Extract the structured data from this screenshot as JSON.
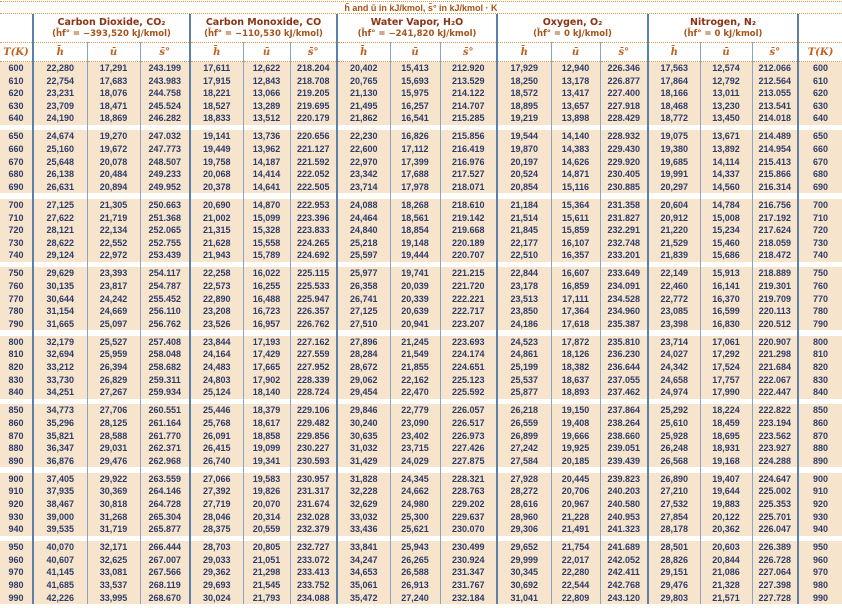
{
  "title": "h̄ and ū in kJ/kmol, s̄° in kJ/kmol · K",
  "table": {
    "t_header": "T(K)",
    "symbols": {
      "h": "h̄",
      "u": "ū",
      "s": "s̄°"
    },
    "gases": [
      {
        "name": "Carbon Dioxide, CO₂",
        "formation": "(h̄f° = −393,520 kJ/kmol)"
      },
      {
        "name": "Carbon Monoxide, CO",
        "formation": "(h̄f° = −110,530 kJ/kmol)"
      },
      {
        "name": "Water Vapor, H₂O",
        "formation": "(h̄f° = −241,820 kJ/kmol)"
      },
      {
        "name": "Oxygen, O₂",
        "formation": "(h̄f° = 0 kJ/kmol)"
      },
      {
        "name": "Nitrogen, N₂",
        "formation": "(h̄f° = 0 kJ/kmol)"
      }
    ],
    "column_keys": [
      "T",
      "co2_h",
      "co2_u",
      "co2_s",
      "co_h",
      "co_u",
      "co_s",
      "h2o_h",
      "h2o_u",
      "h2o_s",
      "o2_h",
      "o2_u",
      "o2_s",
      "n2_h",
      "n2_u",
      "n2_s",
      "T"
    ],
    "groups": [
      {
        "rows": [
          [
            "600",
            "22,280",
            "17,291",
            "243.199",
            "17,611",
            "12,622",
            "218.204",
            "20,402",
            "15,413",
            "212.920",
            "17,929",
            "12,940",
            "226.346",
            "17,563",
            "12,574",
            "212.066",
            "600"
          ],
          [
            "610",
            "22,754",
            "17,683",
            "243.983",
            "17,915",
            "12,843",
            "218.708",
            "20,765",
            "15,693",
            "213.529",
            "18,250",
            "13,178",
            "226.877",
            "17,864",
            "12,792",
            "212.564",
            "610"
          ],
          [
            "620",
            "23,231",
            "18,076",
            "244.758",
            "18,221",
            "13,066",
            "219.205",
            "21,130",
            "15,975",
            "214.122",
            "18,572",
            "13,417",
            "227.400",
            "18,166",
            "13,011",
            "213.055",
            "620"
          ],
          [
            "630",
            "23,709",
            "18,471",
            "245.524",
            "18,527",
            "13,289",
            "219.695",
            "21,495",
            "16,257",
            "214.707",
            "18,895",
            "13,657",
            "227.918",
            "18,468",
            "13,230",
            "213.541",
            "630"
          ],
          [
            "640",
            "24,190",
            "18,869",
            "246.282",
            "18,833",
            "13,512",
            "220.179",
            "21,862",
            "16,541",
            "215.285",
            "19,219",
            "13,898",
            "228.429",
            "18,772",
            "13,450",
            "214.018",
            "640"
          ]
        ]
      },
      {
        "rows": [
          [
            "650",
            "24,674",
            "19,270",
            "247.032",
            "19,141",
            "13,736",
            "220.656",
            "22,230",
            "16,826",
            "215.856",
            "19,544",
            "14,140",
            "228.932",
            "19,075",
            "13,671",
            "214.489",
            "650"
          ],
          [
            "660",
            "25,160",
            "19,672",
            "247.773",
            "19,449",
            "13,962",
            "221.127",
            "22,600",
            "17,112",
            "216.419",
            "19,870",
            "14,383",
            "229.430",
            "19,380",
            "13,892",
            "214.954",
            "660"
          ],
          [
            "670",
            "25,648",
            "20,078",
            "248.507",
            "19,758",
            "14,187",
            "221.592",
            "22,970",
            "17,399",
            "216.976",
            "20,197",
            "14,626",
            "229.920",
            "19,685",
            "14,114",
            "215.413",
            "670"
          ],
          [
            "680",
            "26,138",
            "20,484",
            "249.233",
            "20,068",
            "14,414",
            "222.052",
            "23,342",
            "17,688",
            "217.527",
            "20,524",
            "14,871",
            "230.405",
            "19,991",
            "14,337",
            "215.866",
            "680"
          ],
          [
            "690",
            "26,631",
            "20,894",
            "249.952",
            "20,378",
            "14,641",
            "222.505",
            "23,714",
            "17,978",
            "218.071",
            "20,854",
            "15,116",
            "230.885",
            "20,297",
            "14,560",
            "216.314",
            "690"
          ]
        ]
      },
      {
        "rows": [
          [
            "700",
            "27,125",
            "21,305",
            "250.663",
            "20,690",
            "14,870",
            "222.953",
            "24,088",
            "18,268",
            "218.610",
            "21,184",
            "15,364",
            "231.358",
            "20,604",
            "14,784",
            "216.756",
            "700"
          ],
          [
            "710",
            "27,622",
            "21,719",
            "251.368",
            "21,002",
            "15,099",
            "223.396",
            "24,464",
            "18,561",
            "219.142",
            "21,514",
            "15,611",
            "231.827",
            "20,912",
            "15,008",
            "217.192",
            "710"
          ],
          [
            "720",
            "28,121",
            "22,134",
            "252.065",
            "21,315",
            "15,328",
            "223.833",
            "24,840",
            "18,854",
            "219.668",
            "21,845",
            "15,859",
            "232.291",
            "21,220",
            "15,234",
            "217.624",
            "720"
          ],
          [
            "730",
            "28,622",
            "22,552",
            "252.755",
            "21,628",
            "15,558",
            "224.265",
            "25,218",
            "19,148",
            "220.189",
            "22,177",
            "16,107",
            "232.748",
            "21,529",
            "15,460",
            "218.059",
            "730"
          ],
          [
            "740",
            "29,124",
            "22,972",
            "253.439",
            "21,943",
            "15,789",
            "224.692",
            "25,597",
            "19,444",
            "220.707",
            "22,510",
            "16,357",
            "233.201",
            "21,839",
            "15,686",
            "218.472",
            "740"
          ]
        ]
      },
      {
        "rows": [
          [
            "750",
            "29,629",
            "23,393",
            "254.117",
            "22,258",
            "16,022",
            "225.115",
            "25,977",
            "19,741",
            "221.215",
            "22,844",
            "16,607",
            "233.649",
            "22,149",
            "15,913",
            "218.889",
            "750"
          ],
          [
            "760",
            "30,135",
            "23,817",
            "254.787",
            "22,573",
            "16,255",
            "225.533",
            "26,358",
            "20,039",
            "221.720",
            "23,178",
            "16,859",
            "234.091",
            "22,460",
            "16,141",
            "219.301",
            "760"
          ],
          [
            "770",
            "30,644",
            "24,242",
            "255.452",
            "22,890",
            "16,488",
            "225.947",
            "26,741",
            "20,339",
            "222.221",
            "23,513",
            "17,111",
            "234.528",
            "22,772",
            "16,370",
            "219.709",
            "770"
          ],
          [
            "780",
            "31,154",
            "24,669",
            "256.110",
            "23,208",
            "16,723",
            "226.357",
            "27,125",
            "20,639",
            "222.717",
            "23,850",
            "17,364",
            "234.960",
            "23,085",
            "16,599",
            "220.113",
            "780"
          ],
          [
            "790",
            "31,665",
            "25,097",
            "256.762",
            "23,526",
            "16,957",
            "226.762",
            "27,510",
            "20,941",
            "223.207",
            "24,186",
            "17,618",
            "235.387",
            "23,398",
            "16,830",
            "220.512",
            "790"
          ]
        ]
      },
      {
        "rows": [
          [
            "800",
            "32,179",
            "25,527",
            "257.408",
            "23,844",
            "17,193",
            "227.162",
            "27,896",
            "21,245",
            "223.693",
            "24,523",
            "17,872",
            "235.810",
            "23,714",
            "17,061",
            "220.907",
            "800"
          ],
          [
            "810",
            "32,694",
            "25,959",
            "258.048",
            "24,164",
            "17,429",
            "227.559",
            "28,284",
            "21,549",
            "224.174",
            "24,861",
            "18,126",
            "236.230",
            "24,027",
            "17,292",
            "221.298",
            "810"
          ],
          [
            "820",
            "33,212",
            "26,394",
            "258.682",
            "24,483",
            "17,665",
            "227.952",
            "28,672",
            "21,855",
            "224.651",
            "25,199",
            "18,382",
            "236.644",
            "24,342",
            "17,524",
            "221.684",
            "820"
          ],
          [
            "830",
            "33,730",
            "26,829",
            "259.311",
            "24,803",
            "17,902",
            "228.339",
            "29,062",
            "22,162",
            "225.123",
            "25,537",
            "18,637",
            "237.055",
            "24,658",
            "17,757",
            "222.067",
            "830"
          ],
          [
            "840",
            "34,251",
            "27,267",
            "259.934",
            "25,124",
            "18,140",
            "228.724",
            "29,454",
            "22,470",
            "225.592",
            "25,877",
            "18,893",
            "237.462",
            "24,974",
            "17,990",
            "222.447",
            "840"
          ]
        ]
      },
      {
        "rows": [
          [
            "850",
            "34,773",
            "27,706",
            "260.551",
            "25,446",
            "18,379",
            "229.106",
            "29,846",
            "22,779",
            "226.057",
            "26,218",
            "19,150",
            "237.864",
            "25,292",
            "18,224",
            "222.822",
            "850"
          ],
          [
            "860",
            "35,296",
            "28,125",
            "261.164",
            "25,768",
            "18,617",
            "229.482",
            "30,240",
            "23,090",
            "226.517",
            "26,559",
            "19,408",
            "238.264",
            "25,610",
            "18,459",
            "223.194",
            "860"
          ],
          [
            "870",
            "35,821",
            "28,588",
            "261.770",
            "26,091",
            "18,858",
            "229.856",
            "30,635",
            "23,402",
            "226.973",
            "26,899",
            "19,666",
            "238.660",
            "25,928",
            "18,695",
            "223.562",
            "870"
          ],
          [
            "880",
            "36,347",
            "29,031",
            "262.371",
            "26,415",
            "19,099",
            "230.227",
            "31,032",
            "23,715",
            "227.426",
            "27,242",
            "19,925",
            "239.051",
            "26,248",
            "18,931",
            "223.927",
            "880"
          ],
          [
            "890",
            "36,876",
            "29,476",
            "262.968",
            "26,740",
            "19,341",
            "230.593",
            "31,429",
            "24,029",
            "227.875",
            "27,584",
            "20,185",
            "239.439",
            "26,568",
            "19,168",
            "224.288",
            "890"
          ]
        ]
      },
      {
        "rows": [
          [
            "900",
            "37,405",
            "29,922",
            "263.559",
            "27,066",
            "19,583",
            "230.957",
            "31,828",
            "24,345",
            "228.321",
            "27,928",
            "20,445",
            "239.823",
            "26,890",
            "19,407",
            "224.647",
            "900"
          ],
          [
            "910",
            "37,935",
            "30,369",
            "264.146",
            "27,392",
            "19,826",
            "231.317",
            "32,228",
            "24,662",
            "228.763",
            "28,272",
            "20,706",
            "240.203",
            "27,210",
            "19,644",
            "225.002",
            "910"
          ],
          [
            "920",
            "38,467",
            "30,818",
            "264.728",
            "27,719",
            "20,070",
            "231.674",
            "32,629",
            "24,980",
            "229.202",
            "28,616",
            "20,967",
            "240.580",
            "27,532",
            "19,883",
            "225.353",
            "920"
          ],
          [
            "930",
            "39,000",
            "31,268",
            "265.304",
            "28,046",
            "20,314",
            "232.028",
            "33,032",
            "25,300",
            "229.637",
            "28,960",
            "21,228",
            "240.953",
            "27,854",
            "20,122",
            "225.701",
            "930"
          ],
          [
            "940",
            "39,535",
            "31,719",
            "265.877",
            "28,375",
            "20,559",
            "232.379",
            "33,436",
            "25,621",
            "230.070",
            "29,306",
            "21,491",
            "241.323",
            "28,178",
            "20,362",
            "226.047",
            "940"
          ]
        ]
      },
      {
        "rows": [
          [
            "950",
            "40,070",
            "32,171",
            "266.444",
            "28,703",
            "20,805",
            "232.727",
            "33,841",
            "25,943",
            "230.499",
            "29,652",
            "21,754",
            "241.689",
            "28,501",
            "20,603",
            "226.389",
            "950"
          ],
          [
            "960",
            "40,607",
            "32,625",
            "267.007",
            "29,033",
            "21,051",
            "233.072",
            "34,247",
            "26,265",
            "230.924",
            "29,999",
            "22,017",
            "242.052",
            "28,826",
            "20,844",
            "226.728",
            "960"
          ],
          [
            "970",
            "41,145",
            "33,081",
            "267.566",
            "29,362",
            "21,298",
            "233.413",
            "34,653",
            "26,588",
            "231.347",
            "30,345",
            "22,280",
            "242.411",
            "29,151",
            "21,086",
            "227.064",
            "970"
          ],
          [
            "980",
            "41,685",
            "33,537",
            "268.119",
            "29,693",
            "21,545",
            "233.752",
            "35,061",
            "26,913",
            "231.767",
            "30,692",
            "22,544",
            "242.768",
            "29,476",
            "21,328",
            "227.398",
            "980"
          ],
          [
            "990",
            "42,226",
            "33,995",
            "268.670",
            "30,024",
            "21,793",
            "234.088",
            "35,472",
            "27,240",
            "232.184",
            "31,041",
            "22,809",
            "243.120",
            "29,803",
            "21,571",
            "227.728",
            "990"
          ]
        ]
      }
    ]
  }
}
